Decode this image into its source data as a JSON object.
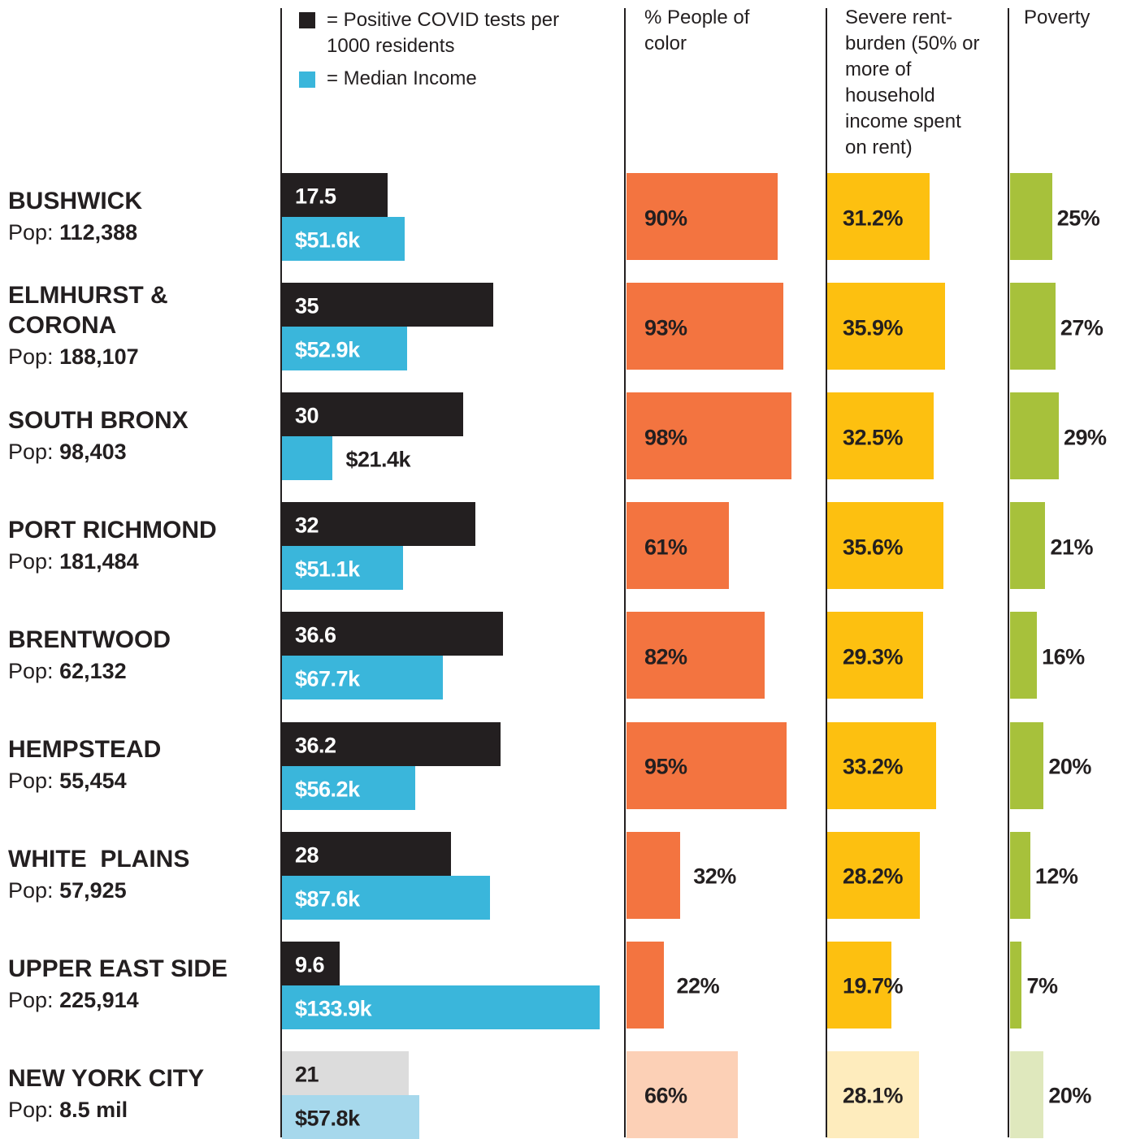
{
  "chart_data": {
    "type": "bar",
    "pop_label": "Pop:",
    "categories": [
      "BUSHWICK",
      "ELMHURST & CORONA",
      "SOUTH BRONX",
      "PORT RICHMOND",
      "BRENTWOOD",
      "HEMPSTEAD",
      "WHITE  PLAINS",
      "UPPER EAST SIDE",
      "NEW YORK CITY"
    ],
    "populations": [
      "112,388",
      "188,107",
      "98,403",
      "181,484",
      "62,132",
      "55,454",
      "57,925",
      "225,914",
      "8.5 mil"
    ],
    "series": [
      {
        "name": "= Positive COVID tests per 1000 residents",
        "color": "#231f20",
        "reference_color": "#dcdcdc",
        "values": [
          17.5,
          35,
          30,
          32,
          36.6,
          36.2,
          28,
          9.6,
          21
        ]
      },
      {
        "name": "= Median Income",
        "color": "#3ab6db",
        "reference_color": "#a6d8ec",
        "values": [
          51.6,
          52.9,
          21.4,
          51.1,
          67.7,
          56.2,
          87.6,
          133.9,
          57.8
        ],
        "value_labels": [
          "$51.6k",
          "$52.9k",
          "$21.4k",
          "$51.1k",
          "$67.7k",
          "$56.2k",
          "$87.6k",
          "$133.9k",
          "$57.8k"
        ]
      },
      {
        "name": "% People of color",
        "color": "#f37440",
        "reference_color": "#fcd0b6",
        "values": [
          90,
          93,
          98,
          61,
          82,
          95,
          32,
          22,
          66
        ],
        "value_labels": [
          "90%",
          "93%",
          "98%",
          "61%",
          "82%",
          "95%",
          "32%",
          "22%",
          "66%"
        ]
      },
      {
        "name": "Severe rent-burden (50% or more of household income spent on rent)",
        "color": "#fdc010",
        "reference_color": "#feecbd",
        "values": [
          31.2,
          35.9,
          32.5,
          35.6,
          29.3,
          33.2,
          28.2,
          19.7,
          28.1
        ],
        "value_labels": [
          "31.2%",
          "35.9%",
          "32.5%",
          "35.6%",
          "29.3%",
          "33.2%",
          "28.2%",
          "19.7%",
          "28.1%"
        ]
      },
      {
        "name": "Poverty",
        "color": "#a7c13b",
        "reference_color": "#dfe8bd",
        "values": [
          25,
          27,
          29,
          21,
          16,
          20,
          12,
          7,
          20
        ],
        "value_labels": [
          "25%",
          "27%",
          "29%",
          "21%",
          "16%",
          "20%",
          "12%",
          "7%",
          "20%"
        ]
      }
    ]
  }
}
